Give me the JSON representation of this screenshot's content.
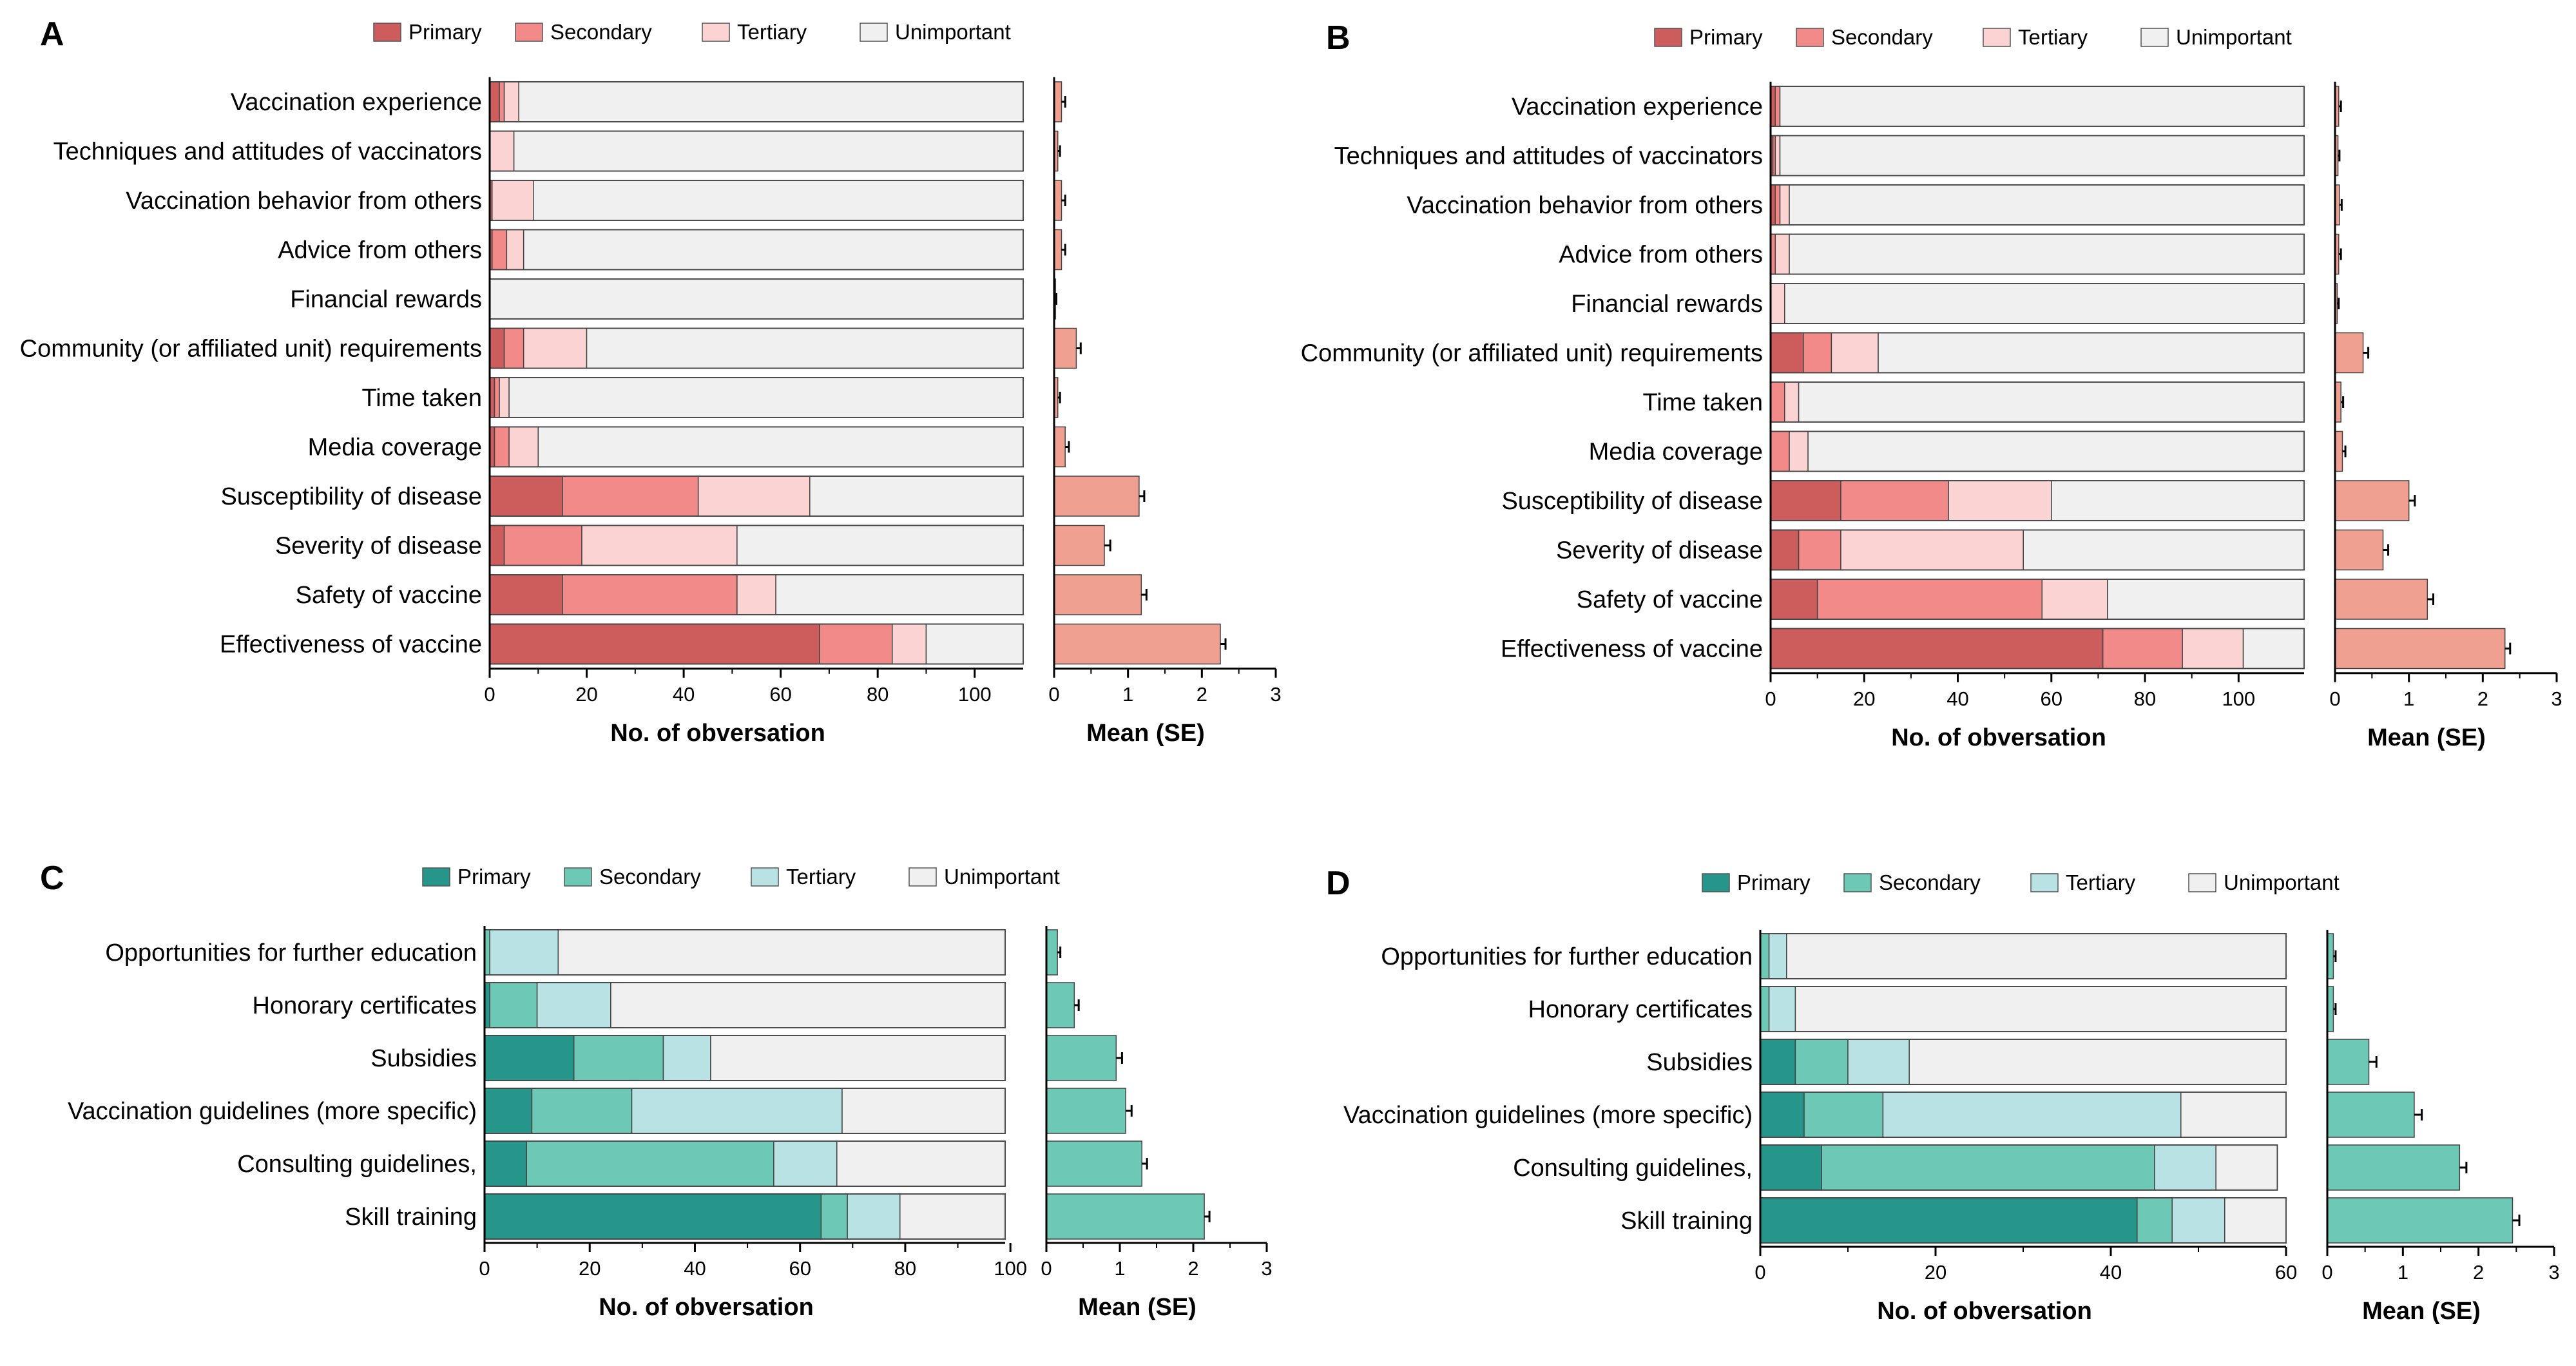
{
  "figure": {
    "legend_labels": [
      "Primary",
      "Secondary",
      "Tertiary",
      "Unimportant"
    ],
    "red_colors": [
      "#cd5c5c",
      "#f28a8a",
      "#fbd3d3",
      "#f0f0f0"
    ],
    "red_mean_color": "#f0a090",
    "teal_colors": [
      "#26968a",
      "#6ec8b6",
      "#b9e2e4",
      "#f0f0f0"
    ],
    "teal_mean_color": "#6ec8b6"
  },
  "chart_data": [
    {
      "panel": "A",
      "type": "bar",
      "stacked": true,
      "palette": "red",
      "categories": [
        "Vaccination experience",
        "Techniques and attitudes of vaccinators",
        "Vaccination behavior from others",
        "Advice from others",
        "Financial rewards",
        "Community (or affiliated unit) requirements",
        "Time taken",
        "Media coverage",
        "Susceptibility of disease",
        "Severity of disease",
        "Safety of vaccine",
        "Effectiveness of vaccine"
      ],
      "series": [
        {
          "name": "Primary",
          "values": [
            2,
            0,
            0.5,
            0.5,
            0,
            3,
            1,
            1,
            15,
            3,
            15,
            68
          ]
        },
        {
          "name": "Secondary",
          "values": [
            1,
            0,
            0,
            3,
            0,
            4,
            1,
            3,
            28,
            16,
            36,
            15
          ]
        },
        {
          "name": "Tertiary",
          "values": [
            3,
            5,
            8.5,
            3.5,
            0,
            13,
            2,
            6,
            23,
            32,
            8,
            7
          ]
        },
        {
          "name": "Unimportant",
          "values": [
            104,
            105,
            101,
            103,
            110,
            90,
            106,
            100,
            44,
            59,
            51,
            20
          ]
        }
      ],
      "xlabel": "No. of obversation",
      "xlim": [
        0,
        110
      ],
      "xticks": [
        "0",
        "20",
        "40",
        "60",
        "80",
        "100"
      ],
      "mean": [
        0.1,
        0.05,
        0.1,
        0.1,
        0.02,
        0.3,
        0.05,
        0.15,
        1.15,
        0.68,
        1.18,
        2.25
      ],
      "se": [
        0.05,
        0.03,
        0.05,
        0.05,
        0.01,
        0.06,
        0.03,
        0.05,
        0.07,
        0.08,
        0.07,
        0.07
      ],
      "mean_label": "Mean (SE)",
      "mean_xlim": [
        0,
        3
      ],
      "mean_ticks": [
        "0",
        "1",
        "2",
        "3"
      ]
    },
    {
      "panel": "B",
      "type": "bar",
      "stacked": true,
      "palette": "red",
      "categories": [
        "Vaccination experience",
        "Techniques and attitudes of vaccinators",
        "Vaccination behavior from others",
        "Advice from others",
        "Financial rewards",
        "Community (or affiliated unit) requirements",
        "Time taken",
        "Media coverage",
        "Susceptibility of disease",
        "Severity of disease",
        "Safety of vaccine",
        "Effectiveness of vaccine"
      ],
      "series": [
        {
          "name": "Primary",
          "values": [
            1,
            0.5,
            1,
            0,
            0,
            7,
            0,
            0,
            15,
            6,
            10,
            71
          ]
        },
        {
          "name": "Secondary",
          "values": [
            1,
            0.5,
            1,
            1,
            0,
            6,
            3,
            4,
            23,
            9,
            48,
            17
          ]
        },
        {
          "name": "Tertiary",
          "values": [
            0,
            1,
            2,
            3,
            3,
            10,
            3,
            4,
            22,
            39,
            14,
            13
          ]
        },
        {
          "name": "Unimportant",
          "values": [
            112,
            112,
            110,
            110,
            111,
            91,
            108,
            106,
            54,
            60,
            42,
            13
          ]
        }
      ],
      "xlabel": "No. of obversation",
      "xlim": [
        0,
        114
      ],
      "xticks": [
        "0",
        "20",
        "40",
        "60",
        "80",
        "100"
      ],
      "mean": [
        0.05,
        0.04,
        0.06,
        0.05,
        0.03,
        0.38,
        0.08,
        0.1,
        1.0,
        0.65,
        1.25,
        2.3
      ],
      "se": [
        0.03,
        0.02,
        0.03,
        0.03,
        0.02,
        0.07,
        0.03,
        0.04,
        0.08,
        0.07,
        0.08,
        0.07
      ],
      "mean_label": "Mean (SE)",
      "mean_xlim": [
        0,
        3
      ],
      "mean_ticks": [
        "0",
        "1",
        "2",
        "3"
      ]
    },
    {
      "panel": "C",
      "type": "bar",
      "stacked": true,
      "palette": "teal",
      "categories": [
        "Opportunities for further education",
        "Honorary certificates",
        "Subsidies",
        "Vaccination guidelines (more specific)",
        "Consulting guidelines,",
        "Skill training"
      ],
      "series": [
        {
          "name": "Primary",
          "values": [
            0,
            1,
            17,
            9,
            8,
            64
          ]
        },
        {
          "name": "Secondary",
          "values": [
            1,
            9,
            17,
            19,
            47,
            5
          ]
        },
        {
          "name": "Tertiary",
          "values": [
            13,
            14,
            9,
            40,
            12,
            10
          ]
        },
        {
          "name": "Unimportant",
          "values": [
            85,
            75,
            56,
            31,
            32,
            20
          ]
        }
      ],
      "xlabel": "No. of obversation",
      "xlim": [
        0,
        99
      ],
      "xticks": [
        "0",
        "20",
        "40",
        "60",
        "80",
        "100"
      ],
      "mean": [
        0.15,
        0.38,
        0.95,
        1.08,
        1.3,
        2.15
      ],
      "se": [
        0.04,
        0.06,
        0.08,
        0.08,
        0.07,
        0.07
      ],
      "mean_label": "Mean (SE)",
      "mean_xlim": [
        0,
        3
      ],
      "mean_ticks": [
        "0",
        "1",
        "2",
        "3"
      ]
    },
    {
      "panel": "D",
      "type": "bar",
      "stacked": true,
      "palette": "teal",
      "categories": [
        "Opportunities for further education",
        "Honorary certificates",
        "Subsidies",
        "Vaccination guidelines (more specific)",
        "Consulting guidelines,",
        "Skill training"
      ],
      "series": [
        {
          "name": "Primary",
          "values": [
            0,
            0,
            4,
            5,
            7,
            43
          ]
        },
        {
          "name": "Secondary",
          "values": [
            1,
            1,
            6,
            9,
            38,
            4
          ]
        },
        {
          "name": "Tertiary",
          "values": [
            2,
            3,
            7,
            34,
            7,
            6
          ]
        },
        {
          "name": "Unimportant",
          "values": [
            57,
            56,
            43,
            12,
            7,
            7
          ]
        }
      ],
      "xlabel": "No. of obversation",
      "xlim": [
        0,
        60
      ],
      "xticks": [
        "0",
        "20",
        "40",
        "60"
      ],
      "mean": [
        0.08,
        0.08,
        0.55,
        1.15,
        1.75,
        2.45
      ],
      "se": [
        0.03,
        0.03,
        0.1,
        0.1,
        0.09,
        0.09
      ],
      "mean_label": "Mean (SE)",
      "mean_xlim": [
        0,
        3
      ],
      "mean_ticks": [
        "0",
        "1",
        "2",
        "3"
      ]
    }
  ]
}
